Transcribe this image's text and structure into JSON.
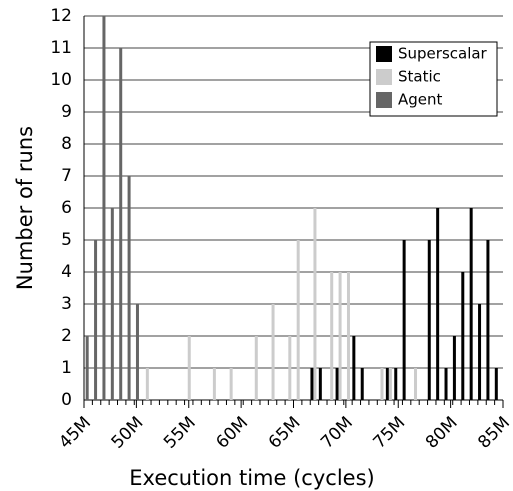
{
  "chart_data": {
    "type": "histogram",
    "xlabel": "Execution time (cycles)",
    "ylabel": "Number of runs",
    "bins": [
      45,
      45.8,
      46.6,
      47.4,
      48.2,
      49,
      49.8,
      50.6,
      51.4,
      52.2,
      53,
      53.8,
      54.6,
      55.4,
      56.2,
      57,
      57.8,
      58.6,
      59.4,
      60.2,
      61,
      61.8,
      62.6,
      63.4,
      64.2,
      65,
      65.8,
      66.6,
      67.4,
      68.2,
      69,
      69.8,
      70.6,
      71.4,
      72.2,
      73,
      73.8,
      74.6,
      75.4,
      76.2,
      77,
      77.8,
      78.6,
      79.4,
      80.2,
      81,
      81.8,
      82.6,
      83.4,
      84.2,
      85
    ],
    "series": [
      {
        "name": "Superscalar",
        "color": "#000000",
        "values": [
          0,
          0,
          0,
          0,
          0,
          0,
          0,
          0,
          0,
          0,
          0,
          0,
          0,
          0,
          0,
          0,
          0,
          0,
          0,
          0,
          0,
          0,
          0,
          0,
          0,
          0,
          0,
          1,
          1,
          0,
          1,
          0,
          2,
          1,
          0,
          0,
          1,
          1,
          5,
          0,
          0,
          5,
          6,
          1,
          2,
          4,
          6,
          3,
          5,
          1
        ]
      },
      {
        "name": "Static",
        "color": "#cccccc",
        "values": [
          0,
          0,
          0,
          0,
          0,
          0,
          0,
          1,
          0,
          0,
          0,
          0,
          2,
          0,
          0,
          1,
          0,
          1,
          0,
          0,
          2,
          0,
          3,
          0,
          2,
          5,
          0,
          6,
          0,
          4,
          4,
          4,
          0,
          0,
          0,
          1,
          1,
          0,
          0,
          1,
          0,
          0,
          0,
          0,
          0,
          0,
          0,
          0,
          0,
          0
        ]
      },
      {
        "name": "Agent",
        "color": "#666666",
        "values": [
          2,
          5,
          12,
          6,
          11,
          7,
          3,
          0,
          0,
          0,
          0,
          0,
          0,
          0,
          0,
          0,
          0,
          0,
          0,
          0,
          0,
          0,
          0,
          0,
          0,
          0,
          0,
          0,
          0,
          0,
          0,
          0,
          0,
          0,
          0,
          0,
          0,
          0,
          0,
          0,
          0,
          0,
          0,
          0,
          0,
          0,
          0,
          0,
          0,
          0
        ]
      }
    ],
    "xlim": [
      45,
      85
    ],
    "xticks": [
      {
        "value": 45,
        "label": "45M"
      },
      {
        "value": 50,
        "label": "50M"
      },
      {
        "value": 55,
        "label": "55M"
      },
      {
        "value": 60,
        "label": "60M"
      },
      {
        "value": 65,
        "label": "65M"
      },
      {
        "value": 70,
        "label": "70M"
      },
      {
        "value": 75,
        "label": "75M"
      },
      {
        "value": 80,
        "label": "80M"
      },
      {
        "value": 85,
        "label": "85M"
      }
    ],
    "ylim": [
      0,
      12
    ],
    "yticks": [
      0,
      1,
      2,
      3,
      4,
      5,
      6,
      7,
      8,
      9,
      10,
      11,
      12
    ],
    "grid": true,
    "legend": "upper right"
  }
}
